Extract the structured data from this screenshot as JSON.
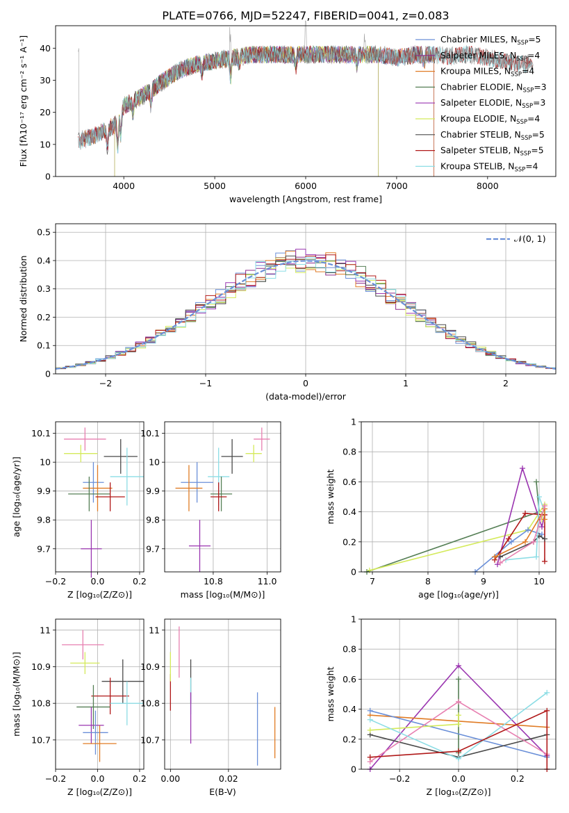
{
  "figure_title": "PLATE=0766, MJD=52247, FIBERID=0041, z=0.083",
  "colors": {
    "Chabrier MILES": "#6a8fd8",
    "Salpeter MILES": "#8b2b8b",
    "Kroupa MILES": "#e07b24",
    "Chabrier ELODIE": "#557f55",
    "Salpeter ELODIE": "#9a35b0",
    "Kroupa ELODIE": "#d4ea5a",
    "Chabrier STELIB": "#4a4a4a",
    "Salpeter STELIB": "#b01818",
    "Kroupa STELIB": "#8cdde5",
    "gaussian": "#6a8fd8",
    "extra_pink": "#e77fb0"
  },
  "chart_data": [
    {
      "id": "spectrum",
      "type": "line",
      "title": "PLATE=0766, MJD=52247, FIBERID=0041, z=0.083",
      "xlabel": "wavelength [Angstrom, rest frame]",
      "ylabel": "Flux [fλ10⁻¹⁷ erg cm⁻² s⁻¹ A⁻¹]",
      "xlim": [
        3250,
        8750
      ],
      "ylim": [
        0,
        47
      ],
      "xticks": [
        4000,
        5000,
        6000,
        7000,
        8000
      ],
      "yticks": [
        0,
        10,
        20,
        30,
        40
      ],
      "legend_position": "upper-right",
      "legend": [
        {
          "label": "Chabrier MILES, N",
          "sub": "SSP",
          "tail": "=5"
        },
        {
          "label": "Salpeter MILES, N",
          "sub": "SSP",
          "tail": "=4"
        },
        {
          "label": "Kroupa MILES, N",
          "sub": "SSP",
          "tail": "=4"
        },
        {
          "label": "Chabrier ELODIE, N",
          "sub": "SSP",
          "tail": "=3"
        },
        {
          "label": "Salpeter ELODIE, N",
          "sub": "SSP",
          "tail": "=3"
        },
        {
          "label": "Kroupa ELODIE, N",
          "sub": "SSP",
          "tail": "=4"
        },
        {
          "label": "Chabrier STELIB, N",
          "sub": "SSP",
          "tail": "=5"
        },
        {
          "label": "Salpeter STELIB, N",
          "sub": "SSP",
          "tail": "=5"
        },
        {
          "label": "Kroupa STELIB, N",
          "sub": "SSP",
          "tail": "=4"
        }
      ],
      "continuum": [
        [
          3500,
          11
        ],
        [
          3700,
          13
        ],
        [
          3900,
          16
        ],
        [
          4000,
          22
        ],
        [
          4200,
          25
        ],
        [
          4400,
          29
        ],
        [
          4600,
          33
        ],
        [
          4800,
          35
        ],
        [
          5000,
          36
        ],
        [
          5200,
          37
        ],
        [
          5400,
          38
        ],
        [
          5600,
          38
        ],
        [
          5800,
          38
        ],
        [
          6000,
          38
        ],
        [
          6200,
          38
        ],
        [
          6400,
          38
        ],
        [
          6600,
          38
        ],
        [
          6800,
          38
        ],
        [
          7000,
          37
        ],
        [
          7200,
          38
        ],
        [
          7400,
          38
        ],
        [
          7600,
          37.5
        ],
        [
          7800,
          38
        ],
        [
          8000,
          37
        ],
        [
          8200,
          36
        ],
        [
          8400,
          35
        ]
      ],
      "features": [
        [
          3820,
          -6
        ],
        [
          3933,
          -9
        ],
        [
          3968,
          -7
        ],
        [
          4101,
          -4
        ],
        [
          4300,
          -5
        ],
        [
          4861,
          -3
        ],
        [
          5175,
          -6
        ],
        [
          5270,
          -3
        ],
        [
          5890,
          -4
        ],
        [
          6563,
          -3
        ],
        [
          7300,
          -3
        ]
      ],
      "spikes": [
        [
          3500,
          26
        ],
        [
          5170,
          12
        ],
        [
          6000,
          8
        ],
        [
          6650,
          6
        ]
      ],
      "cutoffs": [
        {
          "model": "Chabrier MILES",
          "start": 3540,
          "end": 7410
        },
        {
          "model": "Salpeter MILES",
          "start": 3540,
          "end": 7410
        },
        {
          "model": "Kroupa MILES",
          "start": 3540,
          "end": 7410
        },
        {
          "model": "Chabrier ELODIE",
          "start": 3900,
          "end": 6800
        },
        {
          "model": "Salpeter ELODIE",
          "start": 3900,
          "end": 6800
        },
        {
          "model": "Kroupa ELODIE",
          "start": 3900,
          "end": 6800
        },
        {
          "model": "Chabrier STELIB",
          "start": 3500,
          "end": 8500
        },
        {
          "model": "Salpeter STELIB",
          "start": 3500,
          "end": 8500
        },
        {
          "model": "Kroupa STELIB",
          "start": 3500,
          "end": 8500
        }
      ]
    },
    {
      "id": "residuals",
      "type": "histogram",
      "xlabel": "(data-model)/error",
      "ylabel": "Normed distribution",
      "xlim": [
        -2.5,
        2.5
      ],
      "ylim": [
        0,
        0.53
      ],
      "xticks": [
        -2,
        -1,
        0,
        1,
        2
      ],
      "xtick_labels": [
        "−2",
        "−1",
        "0",
        "1",
        "2"
      ],
      "yticks": [
        0.0,
        0.1,
        0.2,
        0.3,
        0.4,
        0.5
      ],
      "legend_position": "upper-right",
      "legend_label": "𝒩(0, 1)",
      "bin_width": 0.1
    },
    {
      "id": "age_vs_Z",
      "type": "errorbar",
      "xlabel": "Z [log₁₀(Z/Z⊙)]",
      "ylabel": "age  [log₁₀(age/yr)]",
      "xlim": [
        -0.2,
        0.22
      ],
      "ylim": [
        9.62,
        10.14
      ],
      "xticks": [
        -0.2,
        0.0,
        0.2
      ],
      "xtick_labels": [
        "−0.2",
        "0.0",
        "0.2"
      ],
      "yticks": [
        9.7,
        9.8,
        9.9,
        10.0,
        10.1
      ],
      "points": [
        {
          "model": "extra_pink",
          "x": -0.06,
          "y": 10.08,
          "xerr": 0.1,
          "yerr": 0.04
        },
        {
          "model": "Kroupa ELODIE",
          "x": -0.08,
          "y": 10.03,
          "xerr": 0.08,
          "yerr": 0.03
        },
        {
          "model": "Chabrier STELIB",
          "x": 0.11,
          "y": 10.02,
          "xerr": 0.08,
          "yerr": 0.06
        },
        {
          "model": "Kroupa STELIB",
          "x": 0.14,
          "y": 9.95,
          "xerr": 0.08,
          "yerr": 0.1
        },
        {
          "model": "Chabrier MILES",
          "x": -0.02,
          "y": 9.93,
          "xerr": 0.05,
          "yerr": 0.07
        },
        {
          "model": "Kroupa MILES",
          "x": 0.0,
          "y": 9.91,
          "xerr": 0.07,
          "yerr": 0.08
        },
        {
          "model": "Chabrier ELODIE",
          "x": -0.04,
          "y": 9.89,
          "xerr": 0.1,
          "yerr": 0.06
        },
        {
          "model": "Salpeter STELIB",
          "x": 0.06,
          "y": 9.88,
          "xerr": 0.07,
          "yerr": 0.05
        },
        {
          "model": "Salpeter ELODIE",
          "x": -0.03,
          "y": 9.7,
          "xerr": 0.05,
          "yerr": 0.1
        }
      ]
    },
    {
      "id": "age_vs_mass",
      "type": "errorbar",
      "xlabel": "mass [log₁₀(M/M⊙)]",
      "ylabel": "",
      "xlim": [
        10.62,
        11.05
      ],
      "ylim": [
        9.62,
        10.14
      ],
      "xticks": [
        10.8,
        11.0
      ],
      "xtick_labels": [
        "10.8",
        "11.0"
      ],
      "yticks": [
        9.7,
        9.8,
        9.9,
        10.0,
        10.1
      ],
      "points": [
        {
          "model": "extra_pink",
          "x": 10.98,
          "y": 10.08,
          "xerr": 0.03,
          "yerr": 0.04
        },
        {
          "model": "Kroupa ELODIE",
          "x": 10.95,
          "y": 10.03,
          "xerr": 0.03,
          "yerr": 0.03
        },
        {
          "model": "Chabrier STELIB",
          "x": 10.87,
          "y": 10.02,
          "xerr": 0.04,
          "yerr": 0.06
        },
        {
          "model": "Kroupa STELIB",
          "x": 10.82,
          "y": 9.95,
          "xerr": 0.04,
          "yerr": 0.1
        },
        {
          "model": "Chabrier MILES",
          "x": 10.74,
          "y": 9.93,
          "xerr": 0.06,
          "yerr": 0.07
        },
        {
          "model": "Kroupa MILES",
          "x": 10.71,
          "y": 9.91,
          "xerr": 0.05,
          "yerr": 0.08
        },
        {
          "model": "Chabrier ELODIE",
          "x": 10.83,
          "y": 9.89,
          "xerr": 0.04,
          "yerr": 0.06
        },
        {
          "model": "Salpeter STELIB",
          "x": 10.82,
          "y": 9.88,
          "xerr": 0.03,
          "yerr": 0.05
        },
        {
          "model": "Salpeter ELODIE",
          "x": 10.75,
          "y": 9.71,
          "xerr": 0.04,
          "yerr": 0.09
        }
      ]
    },
    {
      "id": "massweight_vs_age",
      "type": "line",
      "xlabel": "age  [log₁₀(age/yr)]",
      "ylabel": "mass weight",
      "xlim": [
        6.8,
        10.3
      ],
      "ylim": [
        0,
        1.0
      ],
      "xticks": [
        7,
        8,
        9,
        10
      ],
      "yticks": [
        0.0,
        0.2,
        0.4,
        0.6,
        0.8,
        1.0
      ],
      "series": [
        {
          "model": "Chabrier ELODIE",
          "points": [
            [
              6.9,
              0.0
            ],
            [
              10.0,
              0.4
            ],
            [
              9.95,
              0.6
            ]
          ]
        },
        {
          "model": "Kroupa ELODIE",
          "points": [
            [
              6.95,
              0.01
            ],
            [
              9.8,
              0.28
            ],
            [
              10.1,
              0.45
            ],
            [
              10.05,
              0.35
            ]
          ]
        },
        {
          "model": "Chabrier MILES",
          "points": [
            [
              8.85,
              0.0
            ],
            [
              9.5,
              0.2
            ],
            [
              9.8,
              0.28
            ],
            [
              10.05,
              0.25
            ]
          ]
        },
        {
          "model": "Salpeter ELODIE",
          "points": [
            [
              9.25,
              0.05
            ],
            [
              9.7,
              0.69
            ],
            [
              10.05,
              0.3
            ],
            [
              10.1,
              0.38
            ]
          ]
        },
        {
          "model": "Salpeter STELIB",
          "points": [
            [
              9.2,
              0.08
            ],
            [
              9.45,
              0.22
            ],
            [
              9.75,
              0.39
            ],
            [
              10.1,
              0.38
            ],
            [
              10.1,
              0.07
            ]
          ]
        },
        {
          "model": "Chabrier STELIB",
          "points": [
            [
              9.3,
              0.1
            ],
            [
              9.9,
              0.2
            ],
            [
              10.0,
              0.24
            ],
            [
              10.1,
              0.22
            ]
          ]
        },
        {
          "model": "Kroupa STELIB",
          "points": [
            [
              9.4,
              0.08
            ],
            [
              9.95,
              0.1
            ],
            [
              10.0,
              0.5
            ],
            [
              10.1,
              0.4
            ]
          ]
        },
        {
          "model": "Kroupa MILES",
          "points": [
            [
              9.2,
              0.1
            ],
            [
              9.75,
              0.2
            ],
            [
              10.1,
              0.42
            ],
            [
              10.1,
              0.35
            ]
          ]
        },
        {
          "model": "extra_pink",
          "points": [
            [
              9.3,
              0.06
            ],
            [
              9.9,
              0.2
            ],
            [
              10.1,
              0.44
            ]
          ]
        }
      ]
    },
    {
      "id": "mass_vs_Z",
      "type": "errorbar",
      "xlabel": "Z [log₁₀(Z/Z⊙)]",
      "ylabel": "mass [log₁₀(M/M⊙)]",
      "xlim": [
        -0.2,
        0.22
      ],
      "ylim": [
        10.62,
        11.03
      ],
      "xticks": [
        -0.2,
        0.0,
        0.2
      ],
      "xtick_labels": [
        "−0.2",
        "0.0",
        "0.2"
      ],
      "yticks": [
        10.7,
        10.8,
        10.9,
        11.0
      ],
      "points": [
        {
          "model": "extra_pink",
          "x": -0.07,
          "y": 10.96,
          "xerr": 0.1,
          "yerr": 0.04
        },
        {
          "model": "Kroupa ELODIE",
          "x": -0.06,
          "y": 10.91,
          "xerr": 0.07,
          "yerr": 0.03
        },
        {
          "model": "Chabrier STELIB",
          "x": 0.12,
          "y": 10.86,
          "xerr": 0.1,
          "yerr": 0.06
        },
        {
          "model": "Salpeter STELIB",
          "x": 0.06,
          "y": 10.82,
          "xerr": 0.09,
          "yerr": 0.05
        },
        {
          "model": "Kroupa STELIB",
          "x": 0.14,
          "y": 10.8,
          "xerr": 0.08,
          "yerr": 0.06
        },
        {
          "model": "Chabrier ELODIE",
          "x": -0.02,
          "y": 10.79,
          "xerr": 0.08,
          "yerr": 0.06
        },
        {
          "model": "Salpeter ELODIE",
          "x": -0.03,
          "y": 10.74,
          "xerr": 0.06,
          "yerr": 0.05
        },
        {
          "model": "Chabrier MILES",
          "x": -0.01,
          "y": 10.72,
          "xerr": 0.06,
          "yerr": 0.06
        },
        {
          "model": "Kroupa MILES",
          "x": 0.01,
          "y": 10.69,
          "xerr": 0.08,
          "yerr": 0.05
        }
      ]
    },
    {
      "id": "mass_vs_EBV",
      "type": "errorbar",
      "xlabel": "E(B-V)",
      "ylabel": "",
      "xlim": [
        -0.002,
        0.038
      ],
      "ylim": [
        10.62,
        11.03
      ],
      "xticks": [
        0.0,
        0.02
      ],
      "xtick_labels": [
        "0.00",
        "0.02"
      ],
      "yticks": [
        10.7,
        10.8,
        10.9,
        11.0
      ],
      "points": [
        {
          "model": "Salpeter STELIB",
          "x": 0.0,
          "y": 10.83,
          "xerr": 0.0,
          "yerr": 0.05
        },
        {
          "model": "Kroupa ELODIE",
          "x": 0.0,
          "y": 10.9,
          "xerr": 0.0,
          "yerr": 0.04
        },
        {
          "model": "extra_pink",
          "x": 0.003,
          "y": 10.94,
          "xerr": 0.0,
          "yerr": 0.07
        },
        {
          "model": "Chabrier STELIB",
          "x": 0.007,
          "y": 10.86,
          "xerr": 0.0,
          "yerr": 0.06
        },
        {
          "model": "Kroupa STELIB",
          "x": 0.007,
          "y": 10.82,
          "xerr": 0.0,
          "yerr": 0.05
        },
        {
          "model": "Salpeter ELODIE",
          "x": 0.007,
          "y": 10.76,
          "xerr": 0.0,
          "yerr": 0.07
        },
        {
          "model": "Chabrier MILES",
          "x": 0.03,
          "y": 10.73,
          "xerr": 0.0,
          "yerr": 0.1
        },
        {
          "model": "Kroupa MILES",
          "x": 0.036,
          "y": 10.72,
          "xerr": 0.0,
          "yerr": 0.07
        }
      ]
    },
    {
      "id": "massweight_vs_Z",
      "type": "line",
      "xlabel": "Z [log₁₀(Z/Z⊙)]",
      "ylabel": "mass weight",
      "xlim": [
        -0.33,
        0.33
      ],
      "ylim": [
        0,
        1.0
      ],
      "xticks": [
        -0.2,
        0.0,
        0.2
      ],
      "xtick_labels": [
        "−0.2",
        "0.0",
        "0.2"
      ],
      "yticks": [
        0.0,
        0.2,
        0.4,
        0.6,
        0.8,
        1.0
      ],
      "series": [
        {
          "model": "Salpeter ELODIE",
          "points": [
            [
              -0.3,
              0.0
            ],
            [
              0.0,
              0.69
            ],
            [
              0.3,
              0.09
            ]
          ]
        },
        {
          "model": "Chabrier ELODIE",
          "points": [
            [
              0.0,
              0.6
            ],
            [
              0.0,
              0.11
            ]
          ]
        },
        {
          "model": "Kroupa MILES",
          "points": [
            [
              -0.3,
              0.36
            ],
            [
              0.3,
              0.28
            ]
          ]
        },
        {
          "model": "Chabrier MILES",
          "points": [
            [
              -0.3,
              0.39
            ],
            [
              0.3,
              0.08
            ]
          ]
        },
        {
          "model": "Chabrier STELIB",
          "points": [
            [
              -0.3,
              0.23
            ],
            [
              0.0,
              0.08
            ],
            [
              0.3,
              0.23
            ]
          ]
        },
        {
          "model": "Kroupa ELODIE",
          "points": [
            [
              -0.3,
              0.26
            ],
            [
              0.0,
              0.3
            ],
            [
              0.0,
              0.36
            ]
          ]
        },
        {
          "model": "extra_pink",
          "points": [
            [
              -0.3,
              0.05
            ],
            [
              0.0,
              0.45
            ],
            [
              0.3,
              0.1
            ]
          ]
        },
        {
          "model": "Kroupa STELIB",
          "points": [
            [
              -0.3,
              0.33
            ],
            [
              0.0,
              0.07
            ],
            [
              0.3,
              0.51
            ]
          ]
        },
        {
          "model": "Salpeter STELIB",
          "points": [
            [
              -0.3,
              0.08
            ],
            [
              0.0,
              0.12
            ],
            [
              0.3,
              0.39
            ],
            [
              0.3,
              0.0
            ]
          ]
        }
      ]
    }
  ]
}
